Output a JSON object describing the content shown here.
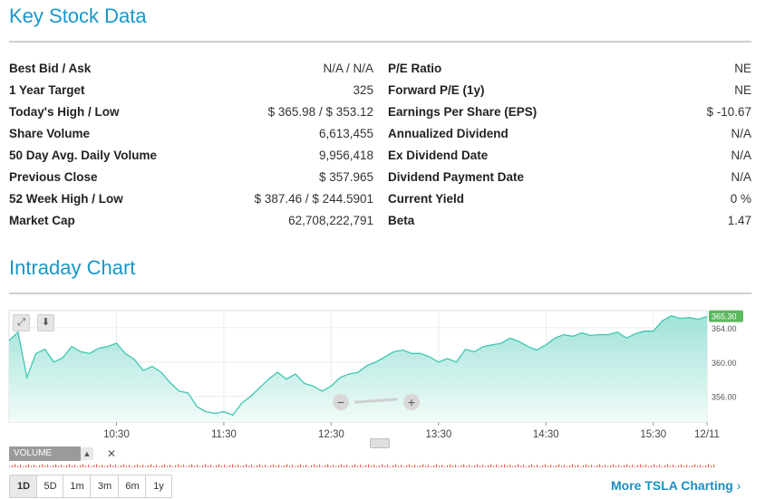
{
  "headings": {
    "key_stock_data": "Key Stock Data",
    "intraday_chart": "Intraday Chart"
  },
  "left_table": [
    {
      "label": "Best Bid / Ask",
      "value": "N/A / N/A"
    },
    {
      "label": "1 Year Target",
      "value": "325"
    },
    {
      "label": "Today's High / Low",
      "value": "$ 365.98 / $ 353.12"
    },
    {
      "label": "Share Volume",
      "value": "6,613,455"
    },
    {
      "label": "50 Day Avg. Daily Volume",
      "value": "9,956,418"
    },
    {
      "label": "Previous Close",
      "value": "$ 357.965"
    },
    {
      "label": "52 Week High / Low",
      "value": "$ 387.46 / $ 244.5901"
    },
    {
      "label": "Market Cap",
      "value": "62,708,222,791"
    }
  ],
  "right_table": [
    {
      "label": "P/E Ratio",
      "value": "NE"
    },
    {
      "label": "Forward P/E (1y)",
      "value": "NE"
    },
    {
      "label": "Earnings Per Share (EPS)",
      "value": "$ -10.67"
    },
    {
      "label": "Annualized Dividend",
      "value": "N/A"
    },
    {
      "label": "Ex Dividend Date",
      "value": "N/A"
    },
    {
      "label": "Dividend Payment Date",
      "value": "N/A"
    },
    {
      "label": "Current Yield",
      "value": "0 %"
    },
    {
      "label": "Beta",
      "value": "1.47"
    }
  ],
  "chart_controls": {
    "volume_label": "VOLUME",
    "ranges": [
      "1D",
      "5D",
      "1m",
      "3m",
      "6m",
      "1y"
    ],
    "active_range": "1D",
    "more_link": "More TSLA Charting"
  },
  "chart_data": {
    "type": "area",
    "title": "",
    "x_ticks": [
      "10:30",
      "11:30",
      "12:30",
      "13:30",
      "14:30",
      "15:30",
      "12/11"
    ],
    "y_ticks": [
      356.0,
      360.0,
      364.0
    ],
    "y_tick_labels": [
      "356.00",
      "360.00",
      "364.00"
    ],
    "ylim": [
      353.0,
      366.0
    ],
    "last_price_label": "365.30",
    "grid": true,
    "colors": {
      "line": "#3ec7b3",
      "fill": "#cdf0ea",
      "last_badge": "#5cb85c",
      "volume": "#e25c45"
    },
    "x": [
      "09:30",
      "09:35",
      "09:40",
      "09:45",
      "09:50",
      "09:55",
      "10:00",
      "10:05",
      "10:10",
      "10:15",
      "10:20",
      "10:25",
      "10:30",
      "10:35",
      "10:40",
      "10:45",
      "10:50",
      "10:55",
      "11:00",
      "11:05",
      "11:10",
      "11:15",
      "11:20",
      "11:25",
      "11:30",
      "11:35",
      "11:40",
      "11:45",
      "11:50",
      "11:55",
      "12:00",
      "12:05",
      "12:10",
      "12:15",
      "12:20",
      "12:25",
      "12:30",
      "12:35",
      "12:40",
      "12:45",
      "12:50",
      "12:55",
      "13:00",
      "13:05",
      "13:10",
      "13:15",
      "13:20",
      "13:25",
      "13:30",
      "13:35",
      "13:40",
      "13:45",
      "13:50",
      "13:55",
      "14:00",
      "14:05",
      "14:10",
      "14:15",
      "14:20",
      "14:25",
      "14:30",
      "14:35",
      "14:40",
      "14:45",
      "14:50",
      "14:55",
      "15:00",
      "15:05",
      "15:10",
      "15:15",
      "15:20",
      "15:25",
      "15:30",
      "15:35",
      "15:40",
      "15:45",
      "15:50",
      "15:55",
      "16:00"
    ],
    "values": [
      362.5,
      363.5,
      358.2,
      361.0,
      361.5,
      360.0,
      360.5,
      361.8,
      361.2,
      361.0,
      361.6,
      361.8,
      362.2,
      361.0,
      360.3,
      359.0,
      359.5,
      358.8,
      357.6,
      356.6,
      356.4,
      354.8,
      354.2,
      354.0,
      354.2,
      353.8,
      355.2,
      356.0,
      357.0,
      358.0,
      358.8,
      358.0,
      358.6,
      357.5,
      357.2,
      356.6,
      357.2,
      358.2,
      358.6,
      358.8,
      359.6,
      360.0,
      360.6,
      361.2,
      361.4,
      361.0,
      361.0,
      360.6,
      360.0,
      360.4,
      360.0,
      361.5,
      361.2,
      361.8,
      362.0,
      362.2,
      362.8,
      362.4,
      361.8,
      361.4,
      362.0,
      362.8,
      363.2,
      363.0,
      363.4,
      363.1,
      363.2,
      363.2,
      363.5,
      362.8,
      363.3,
      363.6,
      363.6,
      364.8,
      365.4,
      365.1,
      365.2,
      365.0,
      365.3
    ]
  }
}
